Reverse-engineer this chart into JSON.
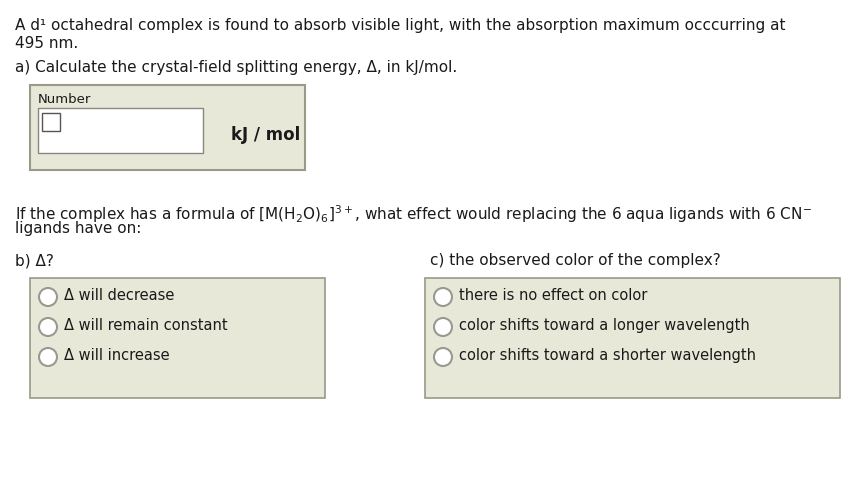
{
  "bg_color": "#ffffff",
  "box_bg": "#e8e8d8",
  "box_border": "#999988",
  "text_color": "#1a1a1a",
  "font_size_main": 11.0,
  "font_size_label": 9.5,
  "font_size_options": 10.5,
  "line1": "A d¹ octahedral complex is found to absorb visible light, with the absorption maximum occcurring at",
  "line2": "495 nm.",
  "line3": "a) Calculate the crystal-field splitting energy, Δ, in kJ/mol.",
  "number_label": "Number",
  "kj_label": "kJ / mol",
  "line4": "If the complex has a formula of [M(H$_2$O)$_6$]$^{3+}$, what effect would replacing the 6 aqua ligands with 6 CN$^{-}$",
  "line5": "ligands have on:",
  "b_label": "b) Δ?",
  "c_label": "c) the observed color of the complex?",
  "b_options": [
    "Δ will decrease",
    "Δ will remain constant",
    "Δ will increase"
  ],
  "c_options": [
    "there is no effect on color",
    "color shifts toward a longer wavelength",
    "color shifts toward a shorter wavelength"
  ],
  "figw": 8.55,
  "figh": 4.83,
  "dpi": 100
}
